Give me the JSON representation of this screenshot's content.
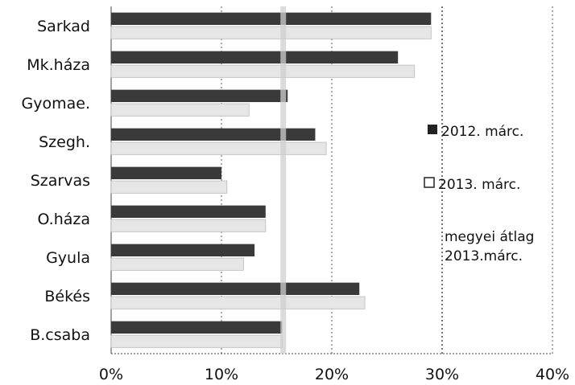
{
  "chart_data": {
    "type": "bar",
    "orientation": "horizontal",
    "title": "",
    "xlabel": "",
    "ylabel": "",
    "categories": [
      "Sarkad",
      "Mk.háza",
      "Gyomae.",
      "Szegh.",
      "Szarvas",
      "O.háza",
      "Gyula",
      "Békés",
      "B.csaba"
    ],
    "series": [
      {
        "name": "2012. márc.",
        "values": [
          29,
          26,
          16,
          18.5,
          10,
          14,
          13,
          22.5,
          15.5
        ],
        "color": "#3a3a3a"
      },
      {
        "name": "2013. márc.",
        "values": [
          29,
          27.5,
          12.5,
          19.5,
          10.5,
          14,
          12,
          23,
          15.5
        ],
        "color": "#e6e6e6"
      }
    ],
    "reference_line": {
      "name": "megyei átlag 2013.márc.",
      "value": 15.6
    },
    "xlim": [
      0,
      40
    ],
    "x_ticks": [
      "0%",
      "10%",
      "20%",
      "30%",
      "40%"
    ],
    "grid": "vertical dotted",
    "legend_position": "right"
  }
}
